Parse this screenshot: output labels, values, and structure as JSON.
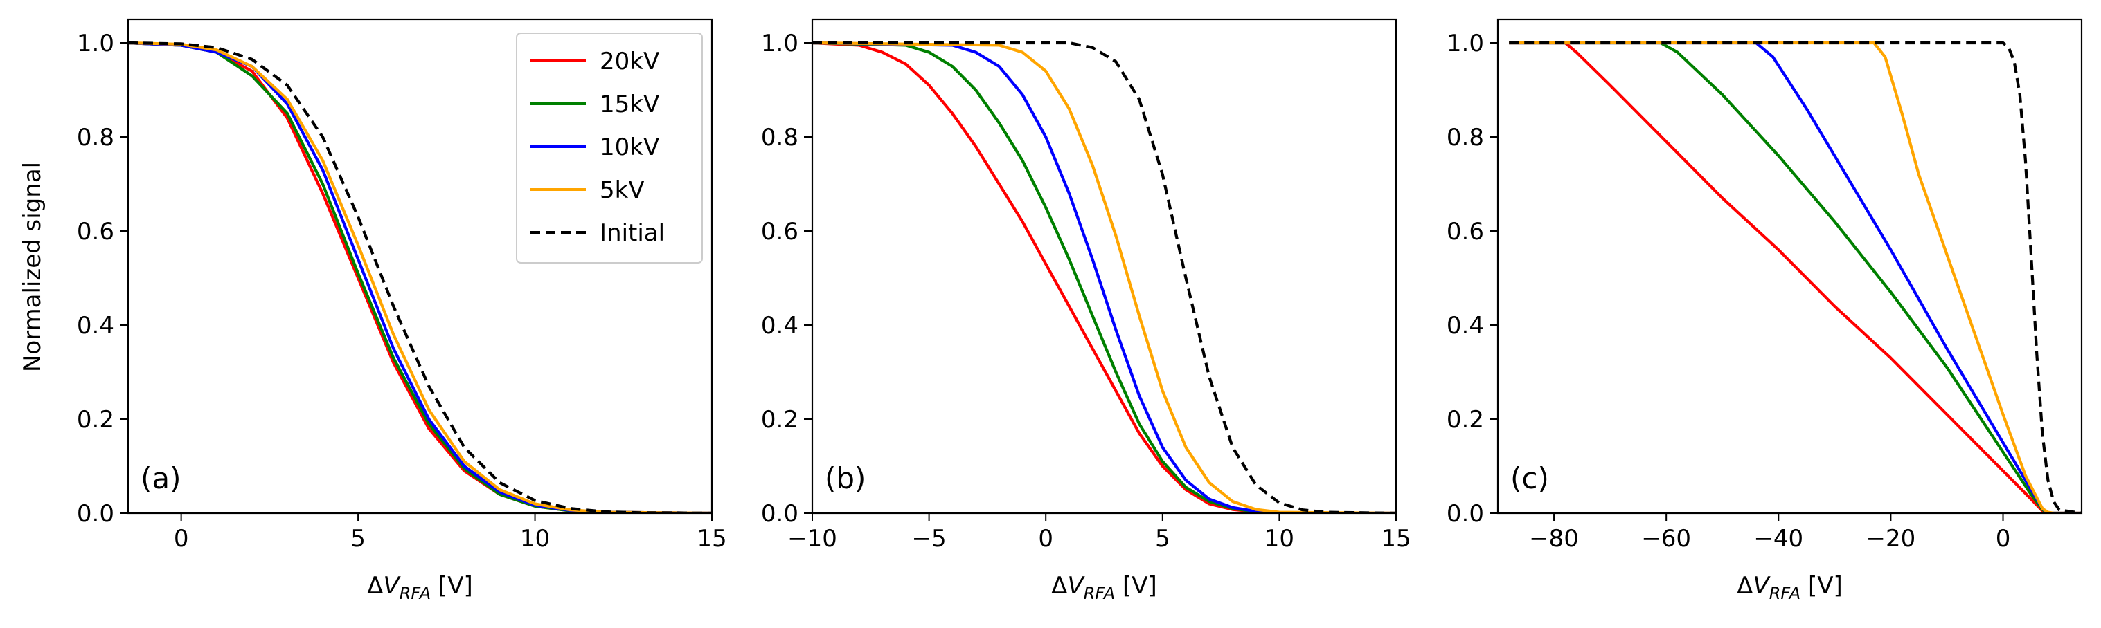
{
  "figure": {
    "ylabel": "Normalized signal"
  },
  "chart_data": [
    {
      "type": "line",
      "panel_label": "(a)",
      "xlabel": {
        "prefix": "Δ",
        "var": "V",
        "sub": "RFA",
        "unit": " [V]"
      },
      "ylabel": "Normalized signal",
      "xlim": [
        -1.5,
        15
      ],
      "ylim": [
        0,
        1.05
      ],
      "xticks": [
        {
          "v": 0,
          "label": "0"
        },
        {
          "v": 5,
          "label": "5"
        },
        {
          "v": 10,
          "label": "10"
        },
        {
          "v": 15,
          "label": "15"
        }
      ],
      "yticks": [
        {
          "v": 0,
          "label": "0.0"
        },
        {
          "v": 0.2,
          "label": "0.2"
        },
        {
          "v": 0.4,
          "label": "0.4"
        },
        {
          "v": 0.6,
          "label": "0.6"
        },
        {
          "v": 0.8,
          "label": "0.8"
        },
        {
          "v": 1.0,
          "label": "1.0"
        }
      ],
      "series": [
        {
          "name": "20kV",
          "color": "#ff0000",
          "dash": false,
          "x": [
            -1.5,
            0,
            1,
            2,
            3,
            4,
            5,
            6,
            7,
            8,
            9,
            10,
            11,
            12,
            15
          ],
          "y": [
            1.0,
            0.995,
            0.98,
            0.94,
            0.84,
            0.68,
            0.5,
            0.32,
            0.18,
            0.09,
            0.04,
            0.015,
            0.005,
            0.002,
            0.0
          ]
        },
        {
          "name": "15kV",
          "color": "#008000",
          "dash": false,
          "x": [
            -1.5,
            0,
            1,
            2,
            3,
            4,
            5,
            6,
            7,
            8,
            9,
            10,
            11,
            12,
            15
          ],
          "y": [
            1.0,
            0.995,
            0.98,
            0.93,
            0.85,
            0.7,
            0.51,
            0.33,
            0.19,
            0.095,
            0.04,
            0.015,
            0.005,
            0.002,
            0.0
          ]
        },
        {
          "name": "10kV",
          "color": "#0000ff",
          "dash": false,
          "x": [
            -1.5,
            0,
            1,
            2,
            3,
            4,
            5,
            6,
            7,
            8,
            9,
            10,
            11,
            12,
            15
          ],
          "y": [
            1.0,
            0.995,
            0.98,
            0.95,
            0.87,
            0.73,
            0.54,
            0.35,
            0.2,
            0.1,
            0.045,
            0.017,
            0.006,
            0.002,
            0.0
          ]
        },
        {
          "name": "5kV",
          "color": "#ffa500",
          "dash": false,
          "x": [
            -1.5,
            0,
            1,
            2,
            3,
            4,
            5,
            6,
            7,
            8,
            9,
            10,
            11,
            12,
            15
          ],
          "y": [
            1.0,
            0.997,
            0.985,
            0.95,
            0.88,
            0.75,
            0.57,
            0.38,
            0.22,
            0.11,
            0.05,
            0.02,
            0.007,
            0.002,
            0.0
          ]
        },
        {
          "name": "Initial",
          "color": "#000000",
          "dash": true,
          "x": [
            -1.5,
            0,
            1,
            2,
            3,
            4,
            5,
            6,
            7,
            8,
            9,
            10,
            11,
            12,
            13,
            15
          ],
          "y": [
            1.0,
            0.998,
            0.99,
            0.965,
            0.91,
            0.8,
            0.63,
            0.44,
            0.27,
            0.14,
            0.065,
            0.027,
            0.01,
            0.003,
            0.001,
            0.0
          ]
        }
      ],
      "legend": {
        "placement": "top-right",
        "entries": [
          {
            "label": "20kV",
            "color": "#ff0000",
            "dash": false
          },
          {
            "label": "15kV",
            "color": "#008000",
            "dash": false
          },
          {
            "label": "10kV",
            "color": "#0000ff",
            "dash": false
          },
          {
            "label": "5kV",
            "color": "#ffa500",
            "dash": false
          },
          {
            "label": "Initial",
            "color": "#000000",
            "dash": true
          }
        ]
      }
    },
    {
      "type": "line",
      "panel_label": "(b)",
      "xlabel": {
        "prefix": "Δ",
        "var": "V",
        "sub": "RFA",
        "unit": " [V]"
      },
      "xlim": [
        -10,
        15
      ],
      "ylim": [
        0,
        1.05
      ],
      "xticks": [
        {
          "v": -10,
          "label": "−10"
        },
        {
          "v": -5,
          "label": "−5"
        },
        {
          "v": 0,
          "label": "0"
        },
        {
          "v": 5,
          "label": "5"
        },
        {
          "v": 10,
          "label": "10"
        },
        {
          "v": 15,
          "label": "15"
        }
      ],
      "yticks": [
        {
          "v": 0,
          "label": "0.0"
        },
        {
          "v": 0.2,
          "label": "0.2"
        },
        {
          "v": 0.4,
          "label": "0.4"
        },
        {
          "v": 0.6,
          "label": "0.6"
        },
        {
          "v": 0.8,
          "label": "0.8"
        },
        {
          "v": 1.0,
          "label": "1.0"
        }
      ],
      "series": [
        {
          "name": "20kV",
          "color": "#ff0000",
          "dash": false,
          "x": [
            -10,
            -8,
            -7,
            -6,
            -5,
            -4,
            -3,
            -2,
            -1,
            0,
            1,
            2,
            3,
            4,
            5,
            6,
            7,
            8,
            9,
            10,
            11,
            15
          ],
          "y": [
            1.0,
            0.995,
            0.98,
            0.955,
            0.91,
            0.85,
            0.78,
            0.7,
            0.62,
            0.53,
            0.44,
            0.35,
            0.26,
            0.17,
            0.1,
            0.05,
            0.02,
            0.008,
            0.003,
            0.001,
            0.0,
            0.0
          ]
        },
        {
          "name": "15kV",
          "color": "#008000",
          "dash": false,
          "x": [
            -10,
            -6,
            -5,
            -4,
            -3,
            -2,
            -1,
            0,
            1,
            2,
            3,
            4,
            5,
            6,
            7,
            8,
            9,
            10,
            15
          ],
          "y": [
            1.0,
            0.995,
            0.98,
            0.95,
            0.9,
            0.83,
            0.75,
            0.65,
            0.54,
            0.42,
            0.3,
            0.19,
            0.11,
            0.055,
            0.025,
            0.01,
            0.003,
            0.0,
            0.0
          ]
        },
        {
          "name": "10kV",
          "color": "#0000ff",
          "dash": false,
          "x": [
            -10,
            -4,
            -3,
            -2,
            -1,
            0,
            1,
            2,
            3,
            4,
            5,
            6,
            7,
            8,
            9,
            10,
            15
          ],
          "y": [
            1.0,
            0.995,
            0.98,
            0.95,
            0.89,
            0.8,
            0.68,
            0.54,
            0.39,
            0.25,
            0.14,
            0.07,
            0.03,
            0.012,
            0.004,
            0.0,
            0.0
          ]
        },
        {
          "name": "5kV",
          "color": "#ffa500",
          "dash": false,
          "x": [
            -10,
            -2,
            -1,
            0,
            1,
            2,
            3,
            4,
            5,
            6,
            7,
            8,
            9,
            10,
            15
          ],
          "y": [
            1.0,
            0.995,
            0.98,
            0.94,
            0.86,
            0.74,
            0.59,
            0.42,
            0.26,
            0.14,
            0.065,
            0.025,
            0.008,
            0.002,
            0.0
          ]
        },
        {
          "name": "Initial",
          "color": "#000000",
          "dash": true,
          "x": [
            -10,
            1,
            2,
            3,
            4,
            5,
            6,
            7,
            8,
            9,
            10,
            11,
            12,
            15
          ],
          "y": [
            1.0,
            1.0,
            0.99,
            0.96,
            0.88,
            0.72,
            0.5,
            0.29,
            0.14,
            0.06,
            0.022,
            0.007,
            0.002,
            0.0
          ]
        }
      ]
    },
    {
      "type": "line",
      "panel_label": "(c)",
      "xlabel": {
        "prefix": "Δ",
        "var": "V",
        "sub": "RFA",
        "unit": " [V]"
      },
      "xlim": [
        -90,
        14
      ],
      "ylim": [
        0,
        1.05
      ],
      "xticks": [
        {
          "v": -80,
          "label": "−80"
        },
        {
          "v": -60,
          "label": "−60"
        },
        {
          "v": -40,
          "label": "−40"
        },
        {
          "v": -20,
          "label": "−20"
        },
        {
          "v": 0,
          "label": "0"
        }
      ],
      "yticks": [
        {
          "v": 0,
          "label": "0.0"
        },
        {
          "v": 0.2,
          "label": "0.2"
        },
        {
          "v": 0.4,
          "label": "0.4"
        },
        {
          "v": 0.6,
          "label": "0.6"
        },
        {
          "v": 0.8,
          "label": "0.8"
        },
        {
          "v": 1.0,
          "label": "1.0"
        }
      ],
      "series": [
        {
          "name": "20kV",
          "color": "#ff0000",
          "dash": false,
          "x": [
            -88,
            -78,
            -76,
            -70,
            -60,
            -50,
            -40,
            -30,
            -20,
            -10,
            0,
            5,
            7,
            8,
            14
          ],
          "y": [
            1.0,
            1.0,
            0.98,
            0.91,
            0.79,
            0.67,
            0.56,
            0.44,
            0.33,
            0.21,
            0.09,
            0.03,
            0.005,
            0.0,
            0.0
          ]
        },
        {
          "name": "15kV",
          "color": "#008000",
          "dash": false,
          "x": [
            -88,
            -61,
            -58,
            -50,
            -40,
            -30,
            -20,
            -10,
            0,
            5,
            7,
            8,
            14
          ],
          "y": [
            1.0,
            1.0,
            0.98,
            0.89,
            0.76,
            0.62,
            0.47,
            0.31,
            0.13,
            0.04,
            0.008,
            0.0,
            0.0
          ]
        },
        {
          "name": "10kV",
          "color": "#0000ff",
          "dash": false,
          "x": [
            -88,
            -44,
            -41,
            -35,
            -30,
            -20,
            -10,
            0,
            5,
            7,
            8,
            14
          ],
          "y": [
            1.0,
            1.0,
            0.97,
            0.86,
            0.76,
            0.56,
            0.35,
            0.15,
            0.05,
            0.01,
            0.0,
            0.0
          ]
        },
        {
          "name": "5kV",
          "color": "#ffa500",
          "dash": false,
          "x": [
            -88,
            -23,
            -21,
            -18,
            -15,
            -10,
            -5,
            0,
            4,
            7,
            8,
            9,
            14
          ],
          "y": [
            1.0,
            1.0,
            0.97,
            0.85,
            0.72,
            0.55,
            0.38,
            0.21,
            0.08,
            0.01,
            0.002,
            0.0,
            0.0
          ]
        },
        {
          "name": "Initial",
          "color": "#000000",
          "dash": true,
          "x": [
            -88,
            0,
            1,
            2,
            3,
            4,
            5,
            6,
            7,
            8,
            9,
            10,
            14
          ],
          "y": [
            1.0,
            1.0,
            0.99,
            0.96,
            0.89,
            0.75,
            0.55,
            0.34,
            0.17,
            0.07,
            0.025,
            0.007,
            0.0
          ]
        }
      ]
    }
  ]
}
